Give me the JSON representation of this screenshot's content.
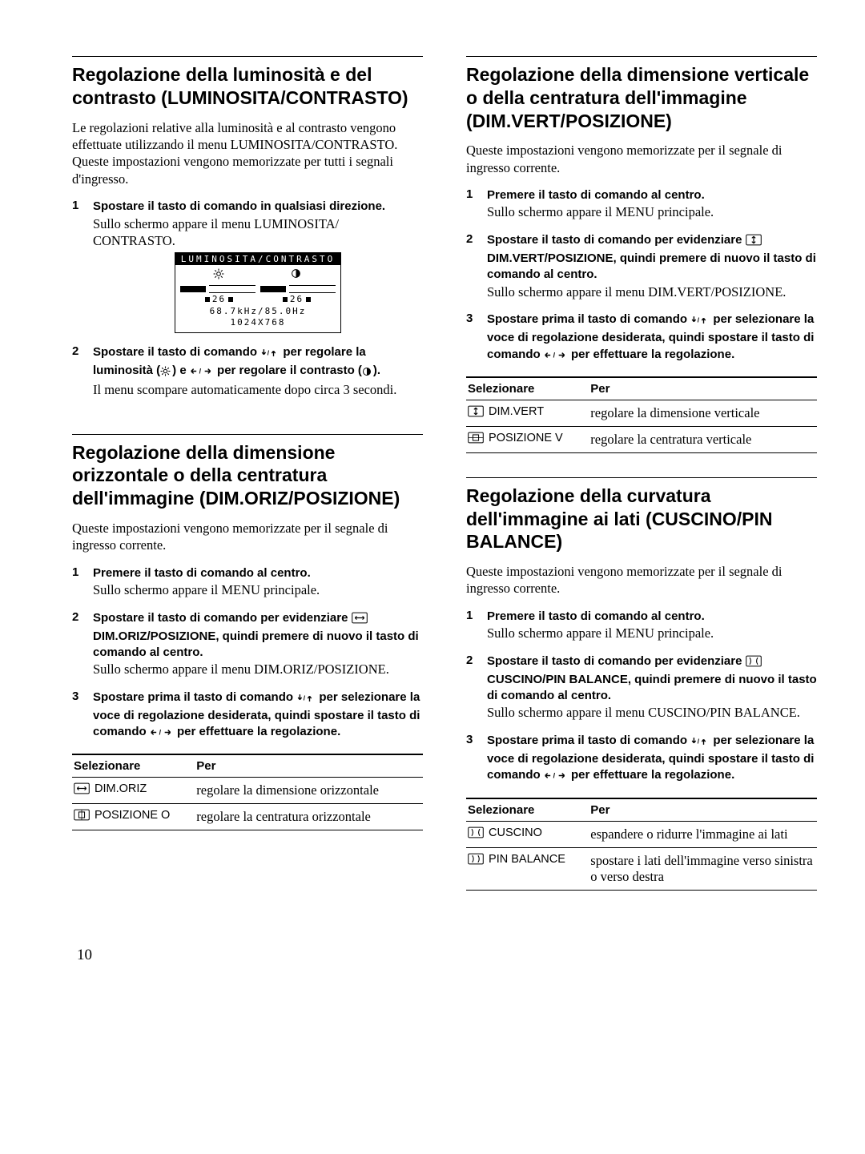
{
  "page_number": "10",
  "sections": {
    "brightness": {
      "title": "Regolazione della luminosità e del contrasto (LUMINOSITA/CONTRASTO)",
      "intro": "Le regolazioni relative alla luminosità e al contrasto vengono effettuate utilizzando il menu LUMINOSITA/CONTRASTO. Queste impostazioni vengono memorizzate per tutti i segnali d'ingresso.",
      "step1_bold": "Spostare il tasto di comando in qualsiasi direzione.",
      "step1_plain": "Sullo schermo appare il menu LUMINOSITA/ CONTRASTO.",
      "osd": {
        "title": "LUMINOSITA/CONTRASTO",
        "value_left": "26",
        "value_right": "26",
        "footer_line1": "68.7kHz/85.0Hz",
        "footer_line2": "1024X768"
      },
      "step2_bold_a": "Spostare il tasto di comando ",
      "step2_bold_b": " per regolare la luminosità (",
      "step2_bold_c": ") e ",
      "step2_bold_d": " per regolare il contrasto (",
      "step2_bold_e": ").",
      "step2_plain": "Il menu scompare automaticamente dopo circa 3 secondi."
    },
    "horiz": {
      "title": "Regolazione della dimensione orizzontale o della centratura dell'immagine (DIM.ORIZ/POSIZIONE)",
      "intro": "Queste impostazioni vengono memorizzate per il segnale di ingresso corrente.",
      "step1_bold": "Premere il tasto di comando al centro.",
      "step1_plain": "Sullo schermo appare il MENU principale.",
      "step2_bold_a": "Spostare il tasto di comando per evidenziare ",
      "step2_bold_b": " DIM.ORIZ/POSIZIONE, quindi premere di nuovo il tasto di comando al centro.",
      "step2_plain": "Sullo schermo appare il menu DIM.ORIZ/POSIZIONE.",
      "step3_bold_a": "Spostare prima il tasto di comando ",
      "step3_bold_b": " per selezionare la voce di regolazione desiderata, quindi spostare il tasto di comando ",
      "step3_bold_c": " per effettuare la regolazione.",
      "table": {
        "head_left": "Selezionare",
        "head_right": "Per",
        "rows": [
          {
            "icon": "hsize",
            "label": "DIM.ORIZ",
            "desc": "regolare la dimensione orizzontale"
          },
          {
            "icon": "hpos",
            "label": "POSIZIONE O",
            "desc": "regolare la centratura orizzontale"
          }
        ]
      }
    },
    "vert": {
      "title": "Regolazione della dimensione verticale o della centratura dell'immagine (DIM.VERT/POSIZIONE)",
      "intro": "Queste impostazioni vengono memorizzate per il segnale di ingresso corrente.",
      "step1_bold": "Premere il tasto di comando al centro.",
      "step1_plain": "Sullo schermo appare il MENU principale.",
      "step2_bold_a": "Spostare il tasto di comando per evidenziare ",
      "step2_bold_b": " DIM.VERT/POSIZIONE, quindi premere di nuovo il tasto di comando al centro.",
      "step2_plain": "Sullo schermo appare il menu DIM.VERT/POSIZIONE.",
      "step3_bold_a": "Spostare prima il tasto di comando ",
      "step3_bold_b": " per selezionare la voce di regolazione desiderata, quindi spostare il tasto di comando ",
      "step3_bold_c": " per effettuare la regolazione.",
      "table": {
        "head_left": "Selezionare",
        "head_right": "Per",
        "rows": [
          {
            "icon": "vsize",
            "label": "DIM.VERT",
            "desc": "regolare la dimensione verticale"
          },
          {
            "icon": "vpos",
            "label": "POSIZIONE V",
            "desc": "regolare la centratura verticale"
          }
        ]
      }
    },
    "pincushion": {
      "title": "Regolazione della curvatura dell'immagine ai lati (CUSCINO/PIN BALANCE)",
      "intro": "Queste impostazioni vengono memorizzate per il segnale di ingresso corrente.",
      "step1_bold": "Premere il tasto di comando al centro.",
      "step1_plain": "Sullo schermo appare il MENU principale.",
      "step2_bold_a": "Spostare il tasto di comando per evidenziare ",
      "step2_bold_b": " CUSCINO/PIN BALANCE, quindi premere di nuovo il tasto di comando al centro.",
      "step2_plain": "Sullo schermo appare il menu CUSCINO/PIN BALANCE.",
      "step3_bold_a": "Spostare prima il tasto di comando ",
      "step3_bold_b": " per selezionare la voce di regolazione desiderata, quindi spostare il tasto di comando ",
      "step3_bold_c": " per effettuare la regolazione.",
      "table": {
        "head_left": "Selezionare",
        "head_right": "Per",
        "rows": [
          {
            "icon": "cuscino",
            "label": "CUSCINO",
            "desc": "espandere o ridurre l'immagine ai lati"
          },
          {
            "icon": "pinbal",
            "label": "PIN BALANCE",
            "desc": "spostare i lati dell'immagine verso sinistra o verso destra"
          }
        ]
      }
    }
  }
}
